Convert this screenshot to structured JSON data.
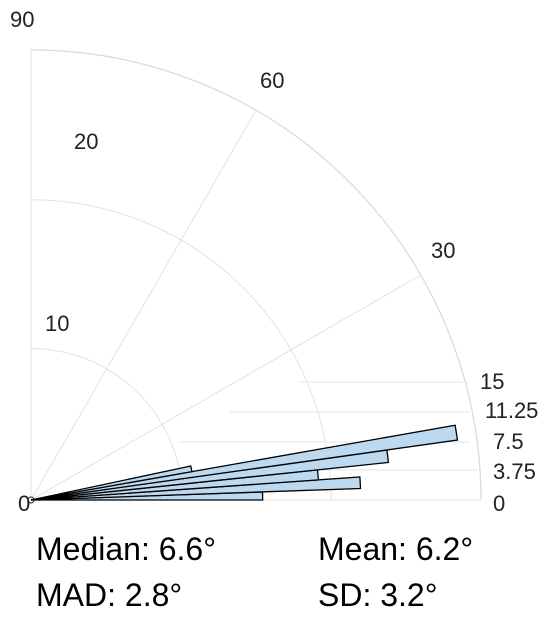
{
  "chart_data": {
    "type": "polar_histogram",
    "angle_range_deg": [
      0,
      90
    ],
    "angle_tick_labels": [
      "0",
      "30",
      "60",
      "90"
    ],
    "radius_max": 15,
    "radial_tick_labels": [
      "0",
      "3.75",
      "7.5",
      "11.25",
      "15"
    ],
    "inner_scale_labels": [
      "10",
      "20"
    ],
    "bins": [
      {
        "start_deg": 0,
        "end_deg": 2,
        "value": 7.8
      },
      {
        "start_deg": 2,
        "end_deg": 4,
        "value": 11.1
      },
      {
        "start_deg": 4,
        "end_deg": 6,
        "value": 9.7
      },
      {
        "start_deg": 6,
        "end_deg": 8,
        "value": 12.1
      },
      {
        "start_deg": 8,
        "end_deg": 10,
        "value": 14.5
      },
      {
        "start_deg": 10,
        "end_deg": 12,
        "value": 5.5
      }
    ],
    "bar_fill": "#bcd9f0",
    "bar_stroke": "#000000",
    "grid": true
  },
  "stats": {
    "median": "Median: 6.6°",
    "mean": "Mean: 6.2°",
    "mad": "MAD: 2.8°",
    "sd": "SD: 3.2°"
  }
}
